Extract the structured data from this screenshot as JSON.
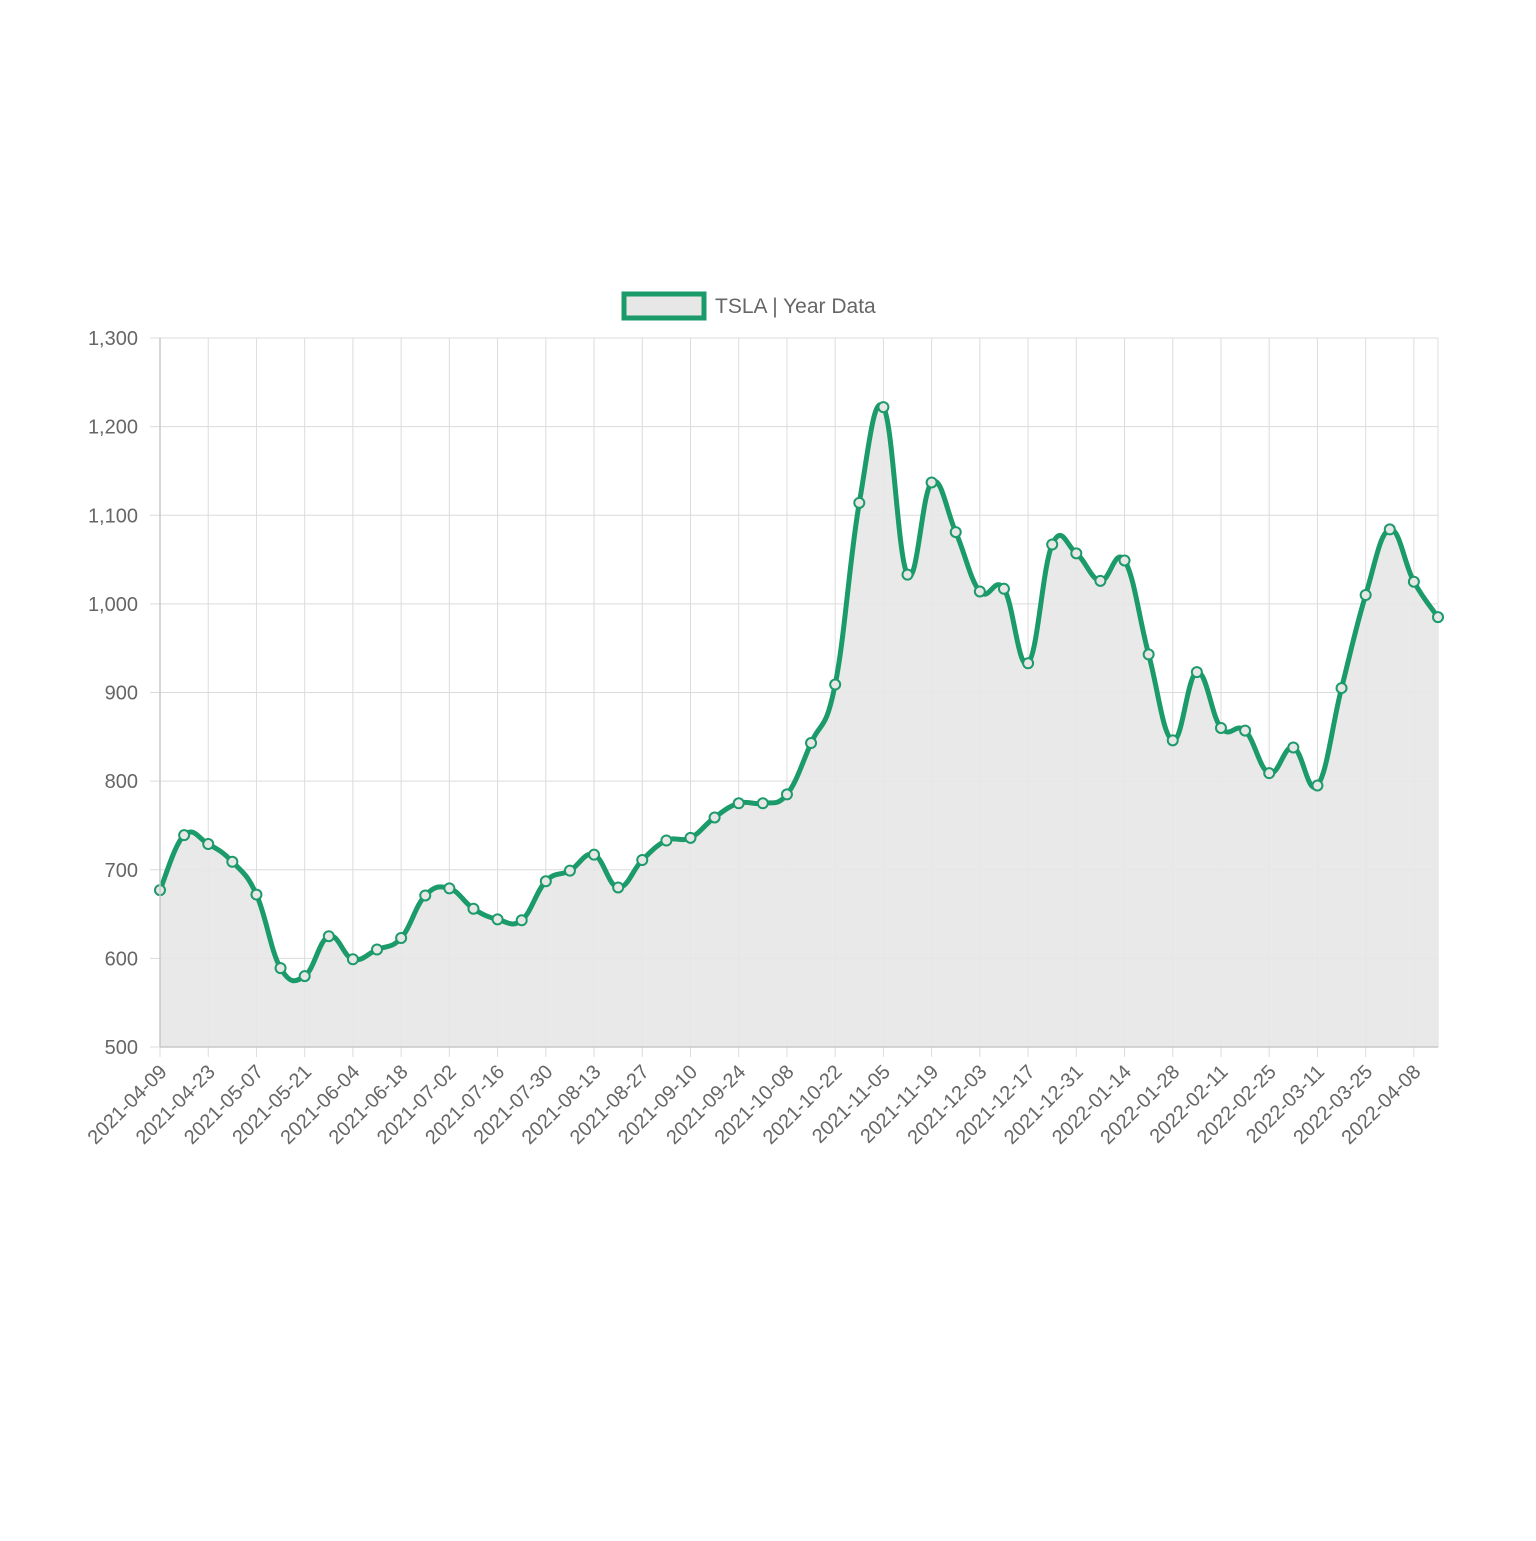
{
  "chart_data": {
    "type": "line",
    "title": "",
    "xlabel": "",
    "ylabel": "",
    "ylim": [
      500,
      1300
    ],
    "yticks": [
      500,
      600,
      700,
      800,
      900,
      1000,
      1100,
      1200,
      1300
    ],
    "ytick_labels": [
      "500",
      "600",
      "700",
      "800",
      "900",
      "1,000",
      "1,100",
      "1,200",
      "1,300"
    ],
    "xtick_labels": [
      "2021-04-09",
      "2021-04-23",
      "2021-05-07",
      "2021-05-21",
      "2021-06-04",
      "2021-06-18",
      "2021-07-02",
      "2021-07-16",
      "2021-07-30",
      "2021-08-13",
      "2021-08-27",
      "2021-09-10",
      "2021-09-24",
      "2021-10-08",
      "2021-10-22",
      "2021-11-05",
      "2021-11-19",
      "2021-12-03",
      "2021-12-17",
      "2021-12-31",
      "2022-01-14",
      "2022-01-28",
      "2022-02-11",
      "2022-02-25",
      "2022-03-11",
      "2022-03-25",
      "2022-04-08"
    ],
    "grid": true,
    "legend_position": "top",
    "x": [
      "2021-04-09",
      "2021-04-16",
      "2021-04-23",
      "2021-04-30",
      "2021-05-07",
      "2021-05-14",
      "2021-05-21",
      "2021-05-28",
      "2021-06-04",
      "2021-06-11",
      "2021-06-18",
      "2021-06-25",
      "2021-07-02",
      "2021-07-09",
      "2021-07-16",
      "2021-07-23",
      "2021-07-30",
      "2021-08-06",
      "2021-08-13",
      "2021-08-20",
      "2021-08-27",
      "2021-09-03",
      "2021-09-10",
      "2021-09-17",
      "2021-09-24",
      "2021-10-01",
      "2021-10-08",
      "2021-10-15",
      "2021-10-22",
      "2021-10-29",
      "2021-11-05",
      "2021-11-12",
      "2021-11-19",
      "2021-11-26",
      "2021-12-03",
      "2021-12-10",
      "2021-12-17",
      "2021-12-24",
      "2021-12-31",
      "2022-01-07",
      "2022-01-14",
      "2022-01-21",
      "2022-01-28",
      "2022-02-04",
      "2022-02-11",
      "2022-02-18",
      "2022-02-25",
      "2022-03-04",
      "2022-03-11",
      "2022-03-18",
      "2022-03-25",
      "2022-04-01",
      "2022-04-08",
      "2022-04-15"
    ],
    "series": [
      {
        "name": "TSLA | Year Data",
        "color": "#1b9a6a",
        "fill": "#e7e7e7",
        "values": [
          677,
          739,
          729,
          709,
          672,
          589,
          580,
          625,
          599,
          610,
          623,
          671,
          679,
          656,
          644,
          643,
          687,
          699,
          717,
          680,
          711,
          733,
          736,
          759,
          775,
          775,
          785,
          843,
          909,
          1114,
          1222,
          1033,
          1137,
          1081,
          1014,
          1017,
          933,
          1067,
          1057,
          1026,
          1049,
          943,
          846,
          923,
          860,
          857,
          809,
          838,
          795,
          905,
          1010,
          1084,
          1025,
          985
        ]
      }
    ]
  }
}
